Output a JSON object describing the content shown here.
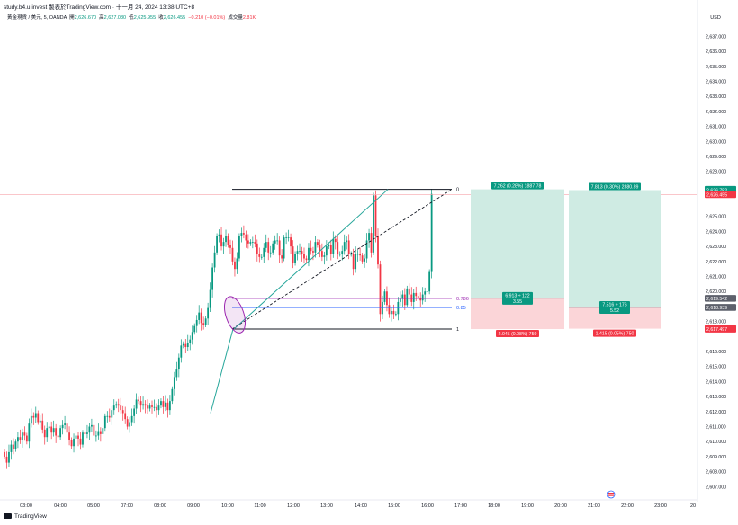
{
  "header": {
    "source_line": "study.b4.u.invest 製表於TradingView.com · 十一月 24, 2024 13:38 UTC+8"
  },
  "legend": {
    "symbol": "黃金現貨 / 美元, 5, OANDA",
    "open_label": "開",
    "open": "2,626.670",
    "high_label": "高",
    "high": "2,627.080",
    "low_label": "低",
    "low": "2,625.955",
    "close_label": "收",
    "close": "2,626.455",
    "change": "−0.210 (−0.01%)",
    "volume_label": "成交量",
    "volume": "2.81K"
  },
  "branding": {
    "text": "TradingView"
  },
  "colors": {
    "up": "#089981",
    "down": "#f23645",
    "fib_purple": "#9c27b0",
    "fib_blue": "#2962ff",
    "profit_zone": "#cfebe3",
    "loss_zone": "#fbd5d8",
    "current_price_line": "#f7a3ab"
  },
  "chart_data": {
    "type": "candlestick",
    "currency": "USD",
    "ylim": [
      2606.6,
      2637.8
    ],
    "y_ticks": [
      {
        "value": 2607,
        "label": "2,607.000"
      },
      {
        "value": 2608,
        "label": "2,608.000"
      },
      {
        "value": 2609,
        "label": "2,609.000"
      },
      {
        "value": 2610,
        "label": "2,610.000"
      },
      {
        "value": 2611,
        "label": "2,611.000"
      },
      {
        "value": 2612,
        "label": "2,612.000"
      },
      {
        "value": 2613,
        "label": "2,613.000"
      },
      {
        "value": 2614,
        "label": "2,614.000"
      },
      {
        "value": 2615,
        "label": "2,615.000"
      },
      {
        "value": 2616,
        "label": "2,616.000"
      },
      {
        "value": 2618,
        "label": "2,618.000"
      },
      {
        "value": 2619,
        "label": "2,619.000"
      },
      {
        "value": 2620,
        "label": "2,620.000"
      },
      {
        "value": 2621,
        "label": "2,621.000"
      },
      {
        "value": 2622,
        "label": "2,622.000"
      },
      {
        "value": 2623,
        "label": "2,623.000"
      },
      {
        "value": 2624,
        "label": "2,624.000"
      },
      {
        "value": 2625,
        "label": "2,625.000"
      },
      {
        "value": 2628,
        "label": "2,628.000"
      },
      {
        "value": 2629,
        "label": "2,629.000"
      },
      {
        "value": 2630,
        "label": "2,630.000"
      },
      {
        "value": 2631,
        "label": "2,631.000"
      },
      {
        "value": 2632,
        "label": "2,632.000"
      },
      {
        "value": 2633,
        "label": "2,633.000"
      },
      {
        "value": 2634,
        "label": "2,634.000"
      },
      {
        "value": 2635,
        "label": "2,635.000"
      },
      {
        "value": 2636,
        "label": "2,636.000"
      },
      {
        "value": 2637,
        "label": "2,637.000"
      }
    ],
    "x_labels": [
      "03:00",
      "04:00",
      "05:00",
      "07:00",
      "08:00",
      "09:00",
      "10:00",
      "11:00",
      "12:00",
      "13:00",
      "14:00",
      "15:00",
      "16:00",
      "17:00",
      "18:00",
      "19:00",
      "20:00",
      "21:00",
      "22:00",
      "23:00",
      "20"
    ],
    "price_tags": [
      {
        "value": 2626.804,
        "label": "2,626.804",
        "color": "#089981"
      },
      {
        "value": 2626.752,
        "label": "2,626.752",
        "color": "#089981"
      },
      {
        "value": 2626.455,
        "label": "2,626.455",
        "color": "#f23645"
      },
      {
        "value": 2619.542,
        "label": "2,619.542",
        "color": "#5d606b"
      },
      {
        "value": 2618.939,
        "label": "2,618.939",
        "color": "#5d606b"
      },
      {
        "value": 2617.524,
        "label": "2,617.524",
        "color": "#f23645"
      },
      {
        "value": 2617.497,
        "label": "2,617.497",
        "color": "#f23645"
      }
    ],
    "fib_levels": [
      {
        "ratio": "0",
        "price": 2626.8
      },
      {
        "ratio": "0.786",
        "price": 2619.54
      },
      {
        "ratio": "0.85",
        "price": 2618.94
      },
      {
        "ratio": "1",
        "price": 2617.5
      }
    ],
    "positions": [
      {
        "entry": 2619.542,
        "target": 2626.804,
        "stop": 2617.497,
        "target_text": "7.262 (0.28%) 1887.78",
        "center_text_1": "6.913 ÷ 122",
        "center_text_2": "3.55",
        "stop_text": "2.045 (0.08%) 750"
      },
      {
        "entry": 2618.939,
        "target": 2626.752,
        "stop": 2617.524,
        "target_text": "7.813 (0.30%) 2380.39",
        "center_text_1": "7.516 ÷ 176",
        "center_text_2": "5.52",
        "stop_text": "1.415 (0.05%) 750"
      }
    ],
    "closes": [
      2609.0,
      2608.6,
      2609.3,
      2609.8,
      2609.5,
      2610.0,
      2610.3,
      2610.1,
      2610.6,
      2610.4,
      2610.0,
      2611.2,
      2611.7,
      2611.6,
      2611.9,
      2611.3,
      2611.4,
      2610.8,
      2610.3,
      2610.9,
      2611.0,
      2610.6,
      2610.9,
      2610.4,
      2610.3,
      2610.9,
      2611.1,
      2611.2,
      2610.6,
      2610.1,
      2609.7,
      2610.2,
      2610.4,
      2610.2,
      2609.8,
      2610.6,
      2610.5,
      2610.6,
      2611.0,
      2611.1,
      2610.4,
      2610.4,
      2610.7,
      2610.5,
      2610.9,
      2611.7,
      2611.7,
      2611.6,
      2612.1,
      2612.4,
      2612.5,
      2612.4,
      2612.1,
      2611.9,
      2611.5,
      2611.0,
      2611.3,
      2611.7,
      2612.2,
      2612.8,
      2612.7,
      2612.4,
      2612.5,
      2612.4,
      2612.2,
      2612.4,
      2612.3,
      2612.3,
      2612.1,
      2612.4,
      2612.7,
      2612.3,
      2612.6,
      2612.1,
      2612.7,
      2613.5,
      2614.3,
      2614.8,
      2615.6,
      2616.4,
      2616.5,
      2616.3,
      2616.6,
      2616.8,
      2617.3,
      2617.7,
      2618.1,
      2618.6,
      2617.9,
      2617.8,
      2618.2,
      2618.9,
      2620.1,
      2621.6,
      2622.6,
      2623.7,
      2623.8,
      2623.0,
      2623.3,
      2623.7,
      2623.1,
      2622.9,
      2622.0,
      2621.5,
      2622.2,
      2623.7,
      2623.9,
      2623.8,
      2623.4,
      2623.2,
      2623.3,
      2623.3,
      2623.2,
      2622.5,
      2622.3,
      2622.3,
      2622.9,
      2623.3,
      2622.6,
      2622.6,
      2623.2,
      2623.4,
      2623.4,
      2622.4,
      2622.2,
      2623.6,
      2623.6,
      2623.6,
      2623.0,
      2621.9,
      2622.5,
      2622.7,
      2622.7,
      2622.5,
      2622.2,
      2622.1,
      2622.9,
      2622.7,
      2622.6,
      2623.3,
      2623.1,
      2622.7,
      2622.3,
      2622.4,
      2623.0,
      2623.1,
      2622.5,
      2623.5,
      2623.3,
      2622.5,
      2622.5,
      2622.7,
      2623.3,
      2623.4,
      2622.5,
      2622.5,
      2621.5,
      2622.5,
      2622.5,
      2622.4,
      2622.0,
      2622.2,
      2623.4,
      2623.9,
      2622.6,
      2626.4,
      2623.7,
      2621.8,
      2618.5,
      2619.3,
      2620.0,
      2619.1,
      2618.5,
      2618.7,
      2618.5,
      2618.5,
      2619.3,
      2619.5,
      2619.8,
      2619.1,
      2620.2,
      2619.8,
      2619.3,
      2619.9,
      2619.7,
      2619.6,
      2619.4,
      2619.8,
      2620.0,
      2620.0,
      2621.3,
      2626.5
    ]
  }
}
